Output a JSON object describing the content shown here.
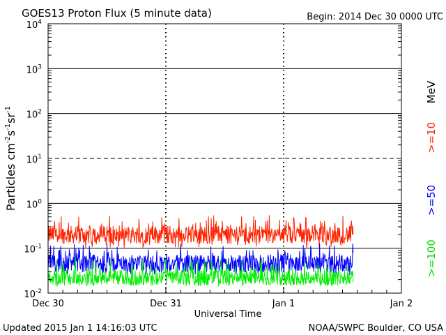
{
  "chart_data": {
    "type": "line",
    "title": "GOES13 Proton Flux (5 minute data)",
    "begin": "Begin: 2014 Dec 30 0000 UTC",
    "ylabel": {
      "base": "Particles cm",
      "e1": "-2",
      "s": "s",
      "e2": "-1",
      "sr": "sr",
      "e3": "-1"
    },
    "xlabel": "Universal Time",
    "yscale": "log",
    "ylim": [
      0.01,
      10000
    ],
    "ytick_labels": [
      {
        "base": "10",
        "exp": "4"
      },
      {
        "base": "10",
        "exp": "3"
      },
      {
        "base": "10",
        "exp": "2"
      },
      {
        "base": "10",
        "exp": "1"
      },
      {
        "base": "10",
        "exp": "0"
      },
      {
        "base": "10",
        "exp": "-1"
      },
      {
        "base": "10",
        "exp": "-2"
      }
    ],
    "x_categories": [
      "Dec 30",
      "Dec 31",
      "Jan 1",
      "Jan 2"
    ],
    "xlim_days": [
      0,
      3
    ],
    "data_end_day": 2.59,
    "series": [
      {
        "name": ">=10",
        "color": "#ff2200",
        "typical": 0.2,
        "min": 0.1,
        "max": 0.55
      },
      {
        "name": ">=50",
        "color": "#0000ff",
        "typical": 0.045,
        "min": 0.025,
        "max": 0.13
      },
      {
        "name": ">=100",
        "color": "#00ee00",
        "typical": 0.022,
        "min": 0.014,
        "max": 0.06
      }
    ],
    "legend_unit": "MeV"
  },
  "footer": {
    "updated": "Updated 2015 Jan  1 14:16:03 UTC",
    "credit": "NOAA/SWPC Boulder, CO USA"
  }
}
